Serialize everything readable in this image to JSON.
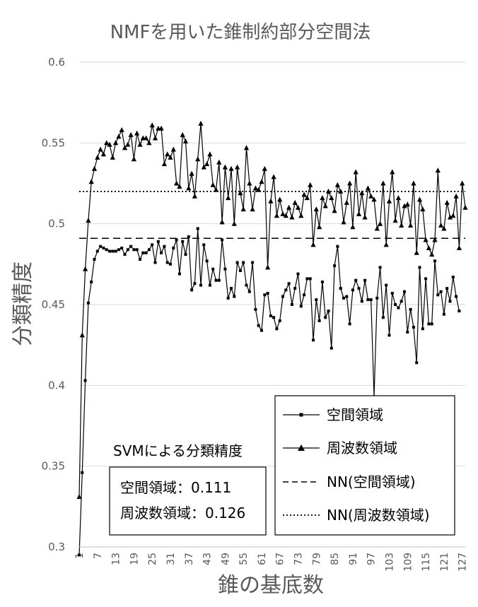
{
  "chart_data": {
    "type": "line",
    "title": "NMFを用いた錐制約部分空間法",
    "xlabel": "錐の基底数",
    "ylabel": "分類精度",
    "ylim": [
      0.3,
      0.6
    ],
    "yticks": [
      "0.3",
      "0.35",
      "0.4",
      "0.45",
      "0.5",
      "0.55",
      "0.6"
    ],
    "xticks": [
      "1",
      "7",
      "13",
      "19",
      "25",
      "31",
      "37",
      "43",
      "49",
      "55",
      "61",
      "67",
      "73",
      "79",
      "85",
      "91",
      "97",
      "103",
      "109",
      "115",
      "121",
      "127"
    ],
    "x_start": 1,
    "x_end": 128,
    "grid": "horizontal",
    "series": [
      {
        "name": "空間領域",
        "marker": "square",
        "values": [
          0.295,
          0.346,
          0.403,
          0.451,
          0.464,
          0.478,
          0.483,
          0.486,
          0.485,
          0.484,
          0.483,
          0.483,
          0.483,
          0.484,
          0.485,
          0.481,
          0.484,
          0.486,
          0.484,
          0.484,
          0.478,
          0.482,
          0.482,
          0.484,
          0.487,
          0.476,
          0.489,
          0.482,
          0.486,
          0.476,
          0.475,
          0.485,
          0.49,
          0.469,
          0.489,
          0.481,
          0.492,
          0.459,
          0.463,
          0.497,
          0.462,
          0.487,
          0.477,
          0.462,
          0.472,
          0.465,
          0.465,
          0.49,
          0.472,
          0.454,
          0.46,
          0.455,
          0.476,
          0.471,
          0.476,
          0.462,
          0.458,
          0.476,
          0.447,
          0.437,
          0.434,
          0.456,
          0.457,
          0.443,
          0.442,
          0.435,
          0.44,
          0.455,
          0.459,
          0.463,
          0.45,
          0.46,
          0.469,
          0.449,
          0.456,
          0.466,
          0.466,
          0.428,
          0.453,
          0.44,
          0.464,
          0.442,
          0.446,
          0.423,
          0.474,
          0.486,
          0.46,
          0.454,
          0.455,
          0.438,
          0.459,
          0.465,
          0.46,
          0.452,
          0.465,
          0.453,
          0.453,
          0.393,
          0.454,
          0.473,
          0.442,
          0.462,
          0.431,
          0.457,
          0.45,
          0.448,
          0.452,
          0.458,
          0.433,
          0.447,
          0.436,
          0.414,
          0.473,
          0.435,
          0.466,
          0.438,
          0.438,
          0.477,
          0.456,
          0.458,
          0.444,
          0.46,
          0.452,
          0.467,
          0.455,
          0.446
        ]
      },
      {
        "name": "周波数領域",
        "marker": "triangle",
        "values": [
          0.331,
          0.431,
          0.472,
          0.502,
          0.526,
          0.534,
          0.541,
          0.546,
          0.543,
          0.55,
          0.549,
          0.541,
          0.55,
          0.554,
          0.558,
          0.547,
          0.549,
          0.555,
          0.54,
          0.556,
          0.549,
          0.553,
          0.553,
          0.55,
          0.561,
          0.553,
          0.559,
          0.559,
          0.537,
          0.543,
          0.541,
          0.546,
          0.525,
          0.523,
          0.555,
          0.551,
          0.522,
          0.531,
          0.517,
          0.54,
          0.562,
          0.535,
          0.537,
          0.543,
          0.524,
          0.521,
          0.538,
          0.501,
          0.535,
          0.516,
          0.534,
          0.5,
          0.535,
          0.519,
          0.509,
          0.547,
          0.525,
          0.509,
          0.522,
          0.521,
          0.526,
          0.534,
          0.473,
          0.514,
          0.529,
          0.505,
          0.515,
          0.506,
          0.505,
          0.51,
          0.504,
          0.513,
          0.51,
          0.505,
          0.518,
          0.516,
          0.524,
          0.487,
          0.509,
          0.498,
          0.516,
          0.511,
          0.52,
          0.516,
          0.508,
          0.524,
          0.52,
          0.501,
          0.513,
          0.525,
          0.498,
          0.532,
          0.506,
          0.519,
          0.504,
          0.522,
          0.517,
          0.515,
          0.497,
          0.5,
          0.525,
          0.487,
          0.514,
          0.532,
          0.502,
          0.516,
          0.499,
          0.511,
          0.512,
          0.499,
          0.525,
          0.482,
          0.515,
          0.509,
          0.49,
          0.485,
          0.481,
          0.49,
          0.533,
          0.499,
          0.497,
          0.513,
          0.504,
          0.505,
          0.517,
          0.485,
          0.525,
          0.51
        ]
      },
      {
        "name": "NN(空間領域)",
        "style": "dashed",
        "value": 0.491
      },
      {
        "name": "NN(周波数領域)",
        "style": "dotted",
        "value": 0.52
      }
    ],
    "legend_position": "bottom-right",
    "annotation": {
      "title": "SVMによる分類精度",
      "rows": [
        {
          "label": "空間領域",
          "separator": "：",
          "value": "0.111"
        },
        {
          "label": "周波数領域",
          "separator": "：",
          "value": "0.126"
        }
      ]
    }
  }
}
